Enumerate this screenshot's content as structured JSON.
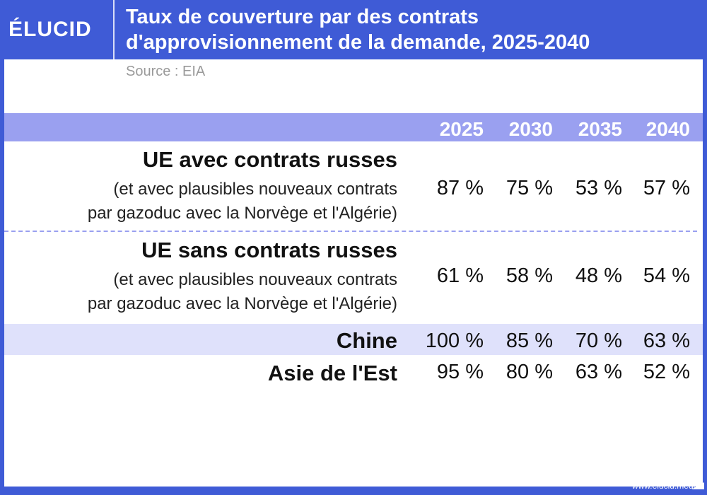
{
  "header": {
    "logo": "ÉLUCID",
    "title_line1": "Taux de couverture par des contrats",
    "title_line2": "d'approvisionnement de la demande, 2025-2040"
  },
  "source": "Source : EIA",
  "footer": "www.elucid.media",
  "chart_data": {
    "type": "table",
    "title": "Taux de couverture par des contrats d'approvisionnement de la demande, 2025-2040",
    "columns": [
      "2025",
      "2030",
      "2035",
      "2040"
    ],
    "rows": [
      {
        "label": "UE avec contrats russes",
        "sublabel_line1": "(et avec plausibles nouveaux contrats",
        "sublabel_line2": "par gazoduc avec la Norvège et l'Algérie)",
        "values": [
          "87 %",
          "75 %",
          "53 %",
          "57 %"
        ]
      },
      {
        "label": "UE sans contrats russes",
        "sublabel_line1": "(et avec plausibles nouveaux contrats",
        "sublabel_line2": "par gazoduc avec la Norvège et l'Algérie)",
        "values": [
          "61 %",
          "58 %",
          "48 %",
          "54 %"
        ]
      },
      {
        "label": "Chine",
        "values": [
          "100 %",
          "85 %",
          "70 %",
          "63 %"
        ]
      },
      {
        "label": "Asie de l'Est",
        "values": [
          "95 %",
          "80 %",
          "63 %",
          "52 %"
        ]
      }
    ]
  }
}
